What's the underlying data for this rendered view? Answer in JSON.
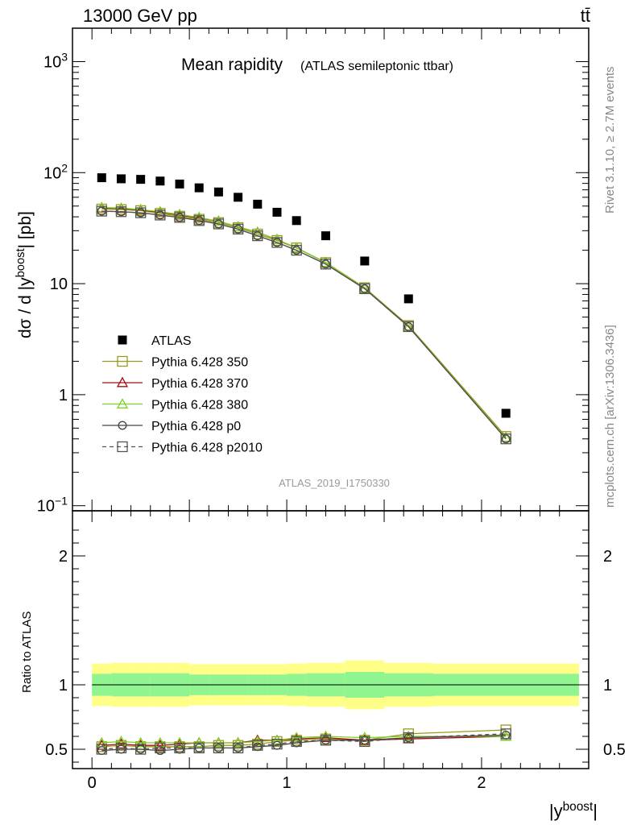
{
  "header": {
    "left_label": "13000 GeV pp",
    "right_label": "tt̄"
  },
  "side_labels": {
    "rivet": "Rivet 3.1.10, ≥ 2.7M events",
    "mcplots": "mcplots.cern.ch [arXiv:1306.3436]"
  },
  "chart_data": [
    {
      "type": "scatter",
      "title": "Mean rapidity",
      "subtitle": "(ATLAS semileptonic ttbar)",
      "ylabel": "dσ / d |y^boost| [pb]",
      "yscale": "log",
      "ylim": [
        0.09,
        2000
      ],
      "xlim": [
        -0.1,
        2.55
      ],
      "yticks": [
        {
          "v": 0.1,
          "main": "10",
          "sup": "−1"
        },
        {
          "v": 1,
          "main": "1",
          "sup": ""
        },
        {
          "v": 10,
          "main": "10",
          "sup": ""
        },
        {
          "v": 100,
          "main": "10",
          "sup": "2"
        },
        {
          "v": 1000,
          "main": "10",
          "sup": "3"
        }
      ],
      "watermark": "ATLAS_2019_I1750330",
      "x": [
        0.05,
        0.15,
        0.25,
        0.35,
        0.45,
        0.55,
        0.65,
        0.75,
        0.85,
        0.95,
        1.05,
        1.2,
        1.4,
        1.625,
        2.125
      ],
      "series": [
        {
          "name": "ATLAS",
          "color": "#000000",
          "marker": "filled-square",
          "values": [
            90,
            88,
            87,
            84,
            79,
            73,
            67,
            60,
            52,
            44,
            37,
            27,
            16,
            7.3,
            0.68
          ]
        },
        {
          "name": "Pythia 6.428 350",
          "color": "#9a9a1e",
          "marker": "open-square",
          "line": "solid",
          "values": [
            47,
            46.5,
            45.5,
            43,
            40.5,
            38,
            35.5,
            32,
            28,
            24.5,
            21,
            15.5,
            9.2,
            4.2,
            0.42
          ]
        },
        {
          "name": "Pythia 6.428 370",
          "color": "#a01010",
          "marker": "open-triangle",
          "line": "solid",
          "values": [
            48,
            47.5,
            46,
            44,
            41.5,
            39,
            36.5,
            32.5,
            29,
            25,
            21,
            15.5,
            9.1,
            4.1,
            0.41
          ]
        },
        {
          "name": "Pythia 6.428 380",
          "color": "#7ed321",
          "marker": "open-triangle",
          "line": "solid",
          "values": [
            48.5,
            48,
            46.5,
            44.5,
            42,
            39.5,
            36.5,
            32.5,
            29,
            25,
            21,
            15.5,
            9.1,
            4.1,
            0.41
          ]
        },
        {
          "name": "Pythia 6.428 p0",
          "color": "#444444",
          "marker": "open-circle",
          "line": "solid",
          "values": [
            45,
            44.5,
            43.5,
            41.5,
            39.5,
            37,
            34.5,
            31,
            27,
            23.5,
            20,
            15,
            9.0,
            4.1,
            0.4
          ]
        },
        {
          "name": "Pythia 6.428 p2010",
          "color": "#555555",
          "marker": "open-square",
          "line": "dashed",
          "values": [
            45,
            44.5,
            43.5,
            41.5,
            39.5,
            37,
            34.5,
            31,
            27,
            23.5,
            20,
            15,
            9.0,
            4.1,
            0.4
          ]
        }
      ],
      "legend_position": "lower-left"
    },
    {
      "type": "line",
      "ylabel": "Ratio to ATLAS",
      "xlabel": "|y^boost|",
      "ylim": [
        0.35,
        2.35
      ],
      "xlim": [
        -0.1,
        2.55
      ],
      "yticks": [
        {
          "v": 0.5,
          "label": "0.5"
        },
        {
          "v": 1,
          "label": "1"
        },
        {
          "v": 2,
          "label": "2"
        }
      ],
      "xticks": [
        {
          "v": 0,
          "label": "0"
        },
        {
          "v": 1,
          "label": "1"
        },
        {
          "v": 2,
          "label": "2"
        }
      ],
      "bin_edges": [
        0,
        0.1,
        0.2,
        0.3,
        0.4,
        0.5,
        0.6,
        0.7,
        0.8,
        0.9,
        1.0,
        1.1,
        1.3,
        1.5,
        1.75,
        2.5
      ],
      "band_outer": [
        0.165,
        0.17,
        0.17,
        0.17,
        0.17,
        0.16,
        0.16,
        0.16,
        0.16,
        0.16,
        0.165,
        0.17,
        0.19,
        0.17,
        0.165
      ],
      "band_inner": [
        0.085,
        0.09,
        0.09,
        0.09,
        0.09,
        0.08,
        0.08,
        0.08,
        0.08,
        0.08,
        0.085,
        0.09,
        0.1,
        0.09,
        0.085
      ],
      "band_colors": {
        "outer": "#ffff88",
        "inner": "#90f590"
      },
      "x": [
        0.05,
        0.15,
        0.25,
        0.35,
        0.45,
        0.55,
        0.65,
        0.75,
        0.85,
        0.95,
        1.05,
        1.2,
        1.4,
        1.625,
        2.125
      ],
      "series": [
        {
          "name": "Pythia 6.428 350",
          "color": "#9a9a1e",
          "marker": "open-square",
          "line": "solid",
          "values": [
            0.52,
            0.53,
            0.52,
            0.52,
            0.52,
            0.52,
            0.53,
            0.53,
            0.54,
            0.56,
            0.57,
            0.58,
            0.57,
            0.62,
            0.65
          ]
        },
        {
          "name": "Pythia 6.428 370",
          "color": "#a01010",
          "marker": "open-triangle",
          "line": "solid",
          "values": [
            0.53,
            0.54,
            0.53,
            0.53,
            0.54,
            0.55,
            0.55,
            0.55,
            0.57,
            0.57,
            0.58,
            0.59,
            0.57,
            0.58,
            0.6
          ]
        },
        {
          "name": "Pythia 6.428 380",
          "color": "#7ed321",
          "marker": "open-triangle",
          "line": "solid",
          "values": [
            0.55,
            0.56,
            0.55,
            0.55,
            0.55,
            0.55,
            0.55,
            0.55,
            0.56,
            0.57,
            0.59,
            0.6,
            0.59,
            0.6,
            0.6
          ]
        },
        {
          "name": "Pythia 6.428 p0",
          "color": "#444444",
          "marker": "open-circle",
          "line": "solid",
          "values": [
            0.49,
            0.5,
            0.5,
            0.49,
            0.5,
            0.51,
            0.51,
            0.51,
            0.52,
            0.53,
            0.55,
            0.57,
            0.57,
            0.59,
            0.61
          ]
        },
        {
          "name": "Pythia 6.428 p2010",
          "color": "#555555",
          "marker": "open-square",
          "line": "dashed",
          "values": [
            0.5,
            0.51,
            0.5,
            0.51,
            0.51,
            0.51,
            0.51,
            0.51,
            0.53,
            0.54,
            0.56,
            0.57,
            0.56,
            0.59,
            0.62
          ]
        }
      ]
    }
  ]
}
